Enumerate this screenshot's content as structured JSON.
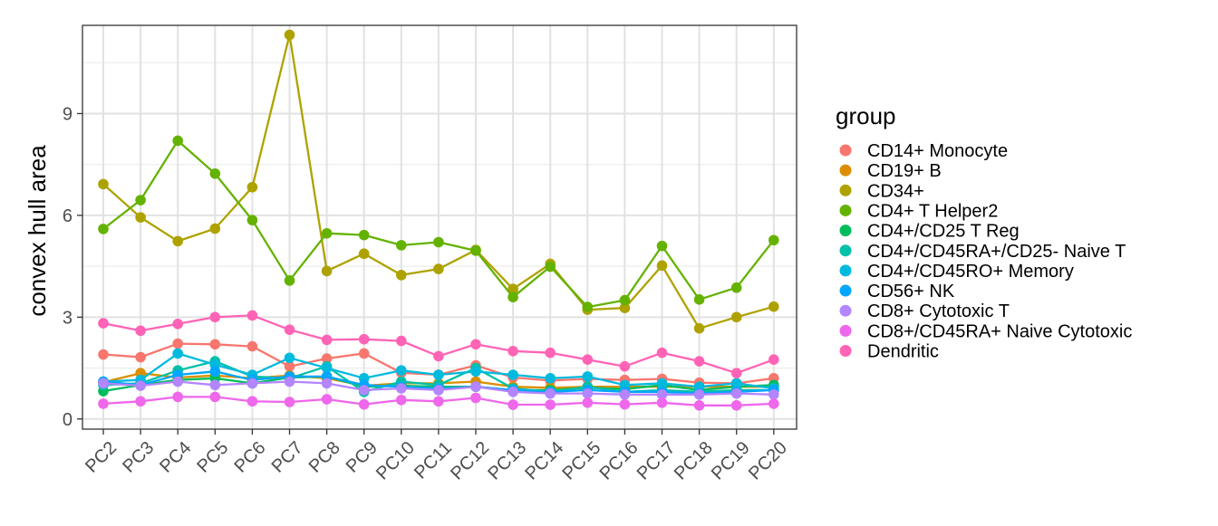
{
  "chart_data": {
    "type": "line",
    "title": "",
    "xlabel": "",
    "ylabel": "convex hull area",
    "ylim": [
      -0.3,
      11.6
    ],
    "yticks": [
      0,
      3,
      6,
      9
    ],
    "ytick_labels": [
      "0",
      "3",
      "6",
      "9"
    ],
    "grid": true,
    "legend_position": "right",
    "legend_title": "group",
    "categories": [
      "PC2",
      "PC3",
      "PC4",
      "PC5",
      "PC6",
      "PC7",
      "PC8",
      "PC9",
      "PC10",
      "PC11",
      "PC12",
      "PC13",
      "PC14",
      "PC15",
      "PC16",
      "PC17",
      "PC18",
      "PC19",
      "PC20"
    ],
    "series": [
      {
        "name": "CD14+ Monocyte",
        "color": "#F8766D",
        "values": [
          1.9,
          1.82,
          2.22,
          2.2,
          2.14,
          1.55,
          1.78,
          1.93,
          1.36,
          1.3,
          1.58,
          1.22,
          1.13,
          1.18,
          1.15,
          1.18,
          1.07,
          1.05,
          1.2
        ]
      },
      {
        "name": "CD19+ B",
        "color": "#DB8E00",
        "values": [
          1.08,
          1.35,
          1.22,
          1.28,
          1.2,
          1.28,
          1.2,
          0.98,
          1.05,
          1.05,
          1.1,
          0.95,
          0.92,
          0.95,
          0.95,
          0.95,
          0.95,
          0.95,
          0.95
        ]
      },
      {
        "name": "CD34+",
        "color": "#AEA200",
        "values": [
          6.92,
          5.94,
          5.24,
          5.61,
          6.83,
          11.32,
          4.36,
          4.87,
          4.24,
          4.42,
          4.98,
          3.83,
          4.57,
          3.22,
          3.27,
          4.52,
          2.67,
          3.0,
          3.31
        ]
      },
      {
        "name": "CD4+ T Helper2",
        "color": "#64B200",
        "values": [
          5.6,
          6.45,
          8.2,
          7.23,
          5.86,
          4.08,
          5.47,
          5.42,
          5.12,
          5.21,
          4.96,
          3.59,
          4.49,
          3.3,
          3.5,
          5.1,
          3.52,
          3.87,
          5.27
        ]
      },
      {
        "name": "CD4+/CD25 T Reg",
        "color": "#00BD5C",
        "values": [
          0.82,
          1.0,
          1.15,
          1.2,
          1.05,
          1.22,
          1.25,
          0.95,
          0.98,
          0.95,
          0.95,
          0.85,
          0.85,
          0.92,
          0.88,
          1.0,
          0.85,
          0.95,
          1.0
        ]
      },
      {
        "name": "CD4+/CD45RA+/CD25- Naive T",
        "color": "#00C1A7",
        "values": [
          1.0,
          1.05,
          1.43,
          1.7,
          1.25,
          1.2,
          1.55,
          0.8,
          1.1,
          1.0,
          1.5,
          0.9,
          0.8,
          0.95,
          0.8,
          0.85,
          0.8,
          0.85,
          0.85
        ]
      },
      {
        "name": "CD4+/CD45RO+ Memory",
        "color": "#00BADE",
        "values": [
          1.1,
          1.15,
          1.93,
          1.6,
          1.3,
          1.8,
          1.5,
          1.2,
          1.43,
          1.3,
          1.4,
          1.3,
          1.2,
          1.25,
          1.0,
          1.05,
          0.95,
          1.05,
          0.9
        ]
      },
      {
        "name": "CD56+ NK",
        "color": "#00A6FF",
        "values": [
          1.1,
          1.0,
          1.3,
          1.4,
          1.15,
          1.25,
          1.25,
          1.0,
          0.95,
          0.9,
          0.95,
          0.85,
          0.8,
          0.85,
          0.8,
          0.8,
          0.75,
          0.8,
          0.85
        ]
      },
      {
        "name": "CD8+ Cytotoxic T",
        "color": "#B385FF",
        "values": [
          1.05,
          0.98,
          1.1,
          1.0,
          1.05,
          1.1,
          1.05,
          0.85,
          0.9,
          0.85,
          0.95,
          0.8,
          0.75,
          0.75,
          0.72,
          0.72,
          0.72,
          0.75,
          0.72
        ]
      },
      {
        "name": "CD8+/CD45RA+ Naive Cytotoxic",
        "color": "#EF67EB",
        "values": [
          0.45,
          0.52,
          0.65,
          0.65,
          0.52,
          0.5,
          0.58,
          0.43,
          0.56,
          0.52,
          0.62,
          0.42,
          0.42,
          0.48,
          0.43,
          0.48,
          0.4,
          0.4,
          0.45
        ]
      },
      {
        "name": "Dendritic",
        "color": "#FF63B6",
        "values": [
          2.82,
          2.6,
          2.8,
          3.0,
          3.05,
          2.63,
          2.33,
          2.35,
          2.3,
          1.85,
          2.2,
          2.0,
          1.95,
          1.75,
          1.55,
          1.95,
          1.7,
          1.35,
          1.75
        ]
      }
    ]
  }
}
